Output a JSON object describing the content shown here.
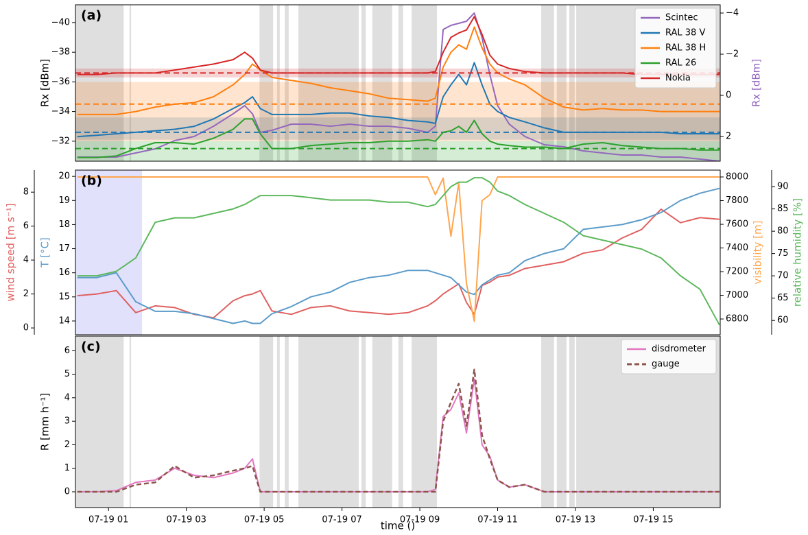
{
  "chart_data": [
    {
      "type": "line",
      "label": "(a)",
      "ylabel": "Rx [dBm]",
      "y2label": "Rx [dBm]",
      "xlim": [
        0.15,
        16.72
      ],
      "ylim": [
        -30.65,
        -41.2
      ],
      "yticks": [
        {
          "value": -40,
          "label": "−40"
        },
        {
          "value": -38,
          "label": "−38"
        },
        {
          "value": -36,
          "label": "−36"
        },
        {
          "value": -34,
          "label": "−34"
        },
        {
          "value": -32,
          "label": "−32"
        }
      ],
      "y2lim": [
        3.2,
        -4.4
      ],
      "y2ticks": [
        {
          "value": -4,
          "label": "−4"
        },
        {
          "value": -2,
          "label": "−2"
        },
        0,
        2
      ],
      "shade_color": "#d9d9d9",
      "shaded": [
        [
          0.15,
          1.39
        ],
        [
          1.54,
          1.58
        ],
        [
          4.88,
          5.23
        ],
        [
          5.33,
          5.4
        ],
        [
          5.53,
          5.63
        ],
        [
          5.88,
          7.43
        ],
        [
          7.5,
          7.61
        ],
        [
          7.78,
          8.29
        ],
        [
          8.45,
          8.57
        ],
        [
          8.79,
          9.44
        ],
        [
          12.12,
          12.45
        ],
        [
          12.52,
          12.77
        ],
        [
          12.84,
          12.98
        ],
        [
          13.02,
          16.72
        ]
      ],
      "legend": "upper right",
      "x": [
        0.2,
        0.7,
        1.2,
        1.7,
        2.2,
        2.7,
        3.2,
        3.7,
        4.2,
        4.5,
        4.7,
        4.9,
        5.2,
        5.7,
        6.2,
        6.7,
        7.2,
        7.7,
        8.2,
        8.7,
        9.2,
        9.4,
        9.6,
        9.8,
        10.0,
        10.2,
        10.4,
        10.6,
        10.8,
        11.0,
        11.3,
        11.7,
        12.2,
        12.7,
        13.2,
        13.7,
        14.2,
        14.7,
        15.2,
        15.7,
        16.2,
        16.7
      ],
      "series": [
        {
          "name": "Scintec",
          "color": "#9467bd",
          "axis": "y2",
          "values": [
            3.0,
            3.0,
            3.0,
            2.8,
            2.6,
            2.2,
            2.0,
            1.5,
            0.9,
            0.5,
            0.9,
            1.8,
            1.7,
            1.4,
            1.4,
            1.5,
            1.4,
            1.5,
            1.5,
            1.6,
            1.8,
            1.5,
            -3.2,
            -3.4,
            -3.5,
            -3.6,
            -4.0,
            -2.8,
            -1.0,
            0.5,
            1.4,
            2.0,
            2.4,
            2.5,
            2.7,
            2.8,
            2.9,
            2.9,
            3.0,
            3.0,
            3.1,
            3.2
          ]
        },
        {
          "name": "RAL 38 V",
          "color": "#1f77b4",
          "axis": "y",
          "baseline": -32.6,
          "band": [
            -33.6,
            -32.1
          ],
          "values": [
            -32.3,
            -32.4,
            -32.5,
            -32.6,
            -32.7,
            -32.8,
            -33.0,
            -33.5,
            -34.2,
            -34.6,
            -35.0,
            -34.2,
            -33.8,
            -33.8,
            -33.8,
            -33.9,
            -33.9,
            -33.7,
            -33.6,
            -33.4,
            -33.3,
            -33.2,
            -35.0,
            -35.8,
            -36.5,
            -35.8,
            -37.3,
            -35.8,
            -34.5,
            -34.0,
            -33.6,
            -33.3,
            -32.9,
            -32.6,
            -32.6,
            -32.6,
            -32.6,
            -32.6,
            -32.6,
            -32.5,
            -32.5,
            -32.5
          ]
        },
        {
          "name": "RAL 38 H",
          "color": "#ff7f0e",
          "axis": "y",
          "baseline": -34.5,
          "band": [
            -36.0,
            -32.0
          ],
          "values": [
            -33.8,
            -33.8,
            -33.8,
            -34.0,
            -34.3,
            -34.5,
            -34.6,
            -35.0,
            -35.8,
            -36.5,
            -37.2,
            -36.8,
            -36.3,
            -36.1,
            -35.9,
            -35.6,
            -35.4,
            -35.2,
            -34.9,
            -34.8,
            -34.7,
            -34.9,
            -37.0,
            -38.0,
            -38.5,
            -38.2,
            -39.7,
            -38.3,
            -37.2,
            -36.6,
            -36.2,
            -35.8,
            -34.9,
            -34.3,
            -34.1,
            -34.2,
            -34.1,
            -34.1,
            -34.0,
            -34.0,
            -34.0,
            -34.0
          ]
        },
        {
          "name": "RAL 26",
          "color": "#2ca02c",
          "axis": "y",
          "baseline": -31.5,
          "band": [
            -32.0,
            -30.6
          ],
          "values": [
            -30.9,
            -30.9,
            -31.0,
            -31.5,
            -31.9,
            -31.9,
            -31.8,
            -32.2,
            -32.8,
            -33.5,
            -33.5,
            -32.5,
            -31.5,
            -31.5,
            -31.7,
            -31.8,
            -31.9,
            -31.9,
            -32.0,
            -32.0,
            -32.1,
            -32.0,
            -32.6,
            -32.7,
            -33.0,
            -32.6,
            -33.4,
            -32.5,
            -32.0,
            -31.8,
            -31.7,
            -31.6,
            -31.6,
            -31.5,
            -31.8,
            -31.9,
            -31.7,
            -31.6,
            -31.5,
            -31.5,
            -31.4,
            -31.4
          ]
        },
        {
          "name": "Nokia",
          "color": "#d62728",
          "axis": "y",
          "baseline": -36.6,
          "band": [
            -36.9,
            -36.3
          ],
          "values": [
            -36.5,
            -36.5,
            -36.6,
            -36.6,
            -36.6,
            -36.8,
            -37.0,
            -37.2,
            -37.5,
            -38.0,
            -37.6,
            -36.8,
            -36.6,
            -36.6,
            -36.6,
            -36.6,
            -36.6,
            -36.6,
            -36.6,
            -36.6,
            -36.6,
            -36.7,
            -38.0,
            -39.0,
            -39.3,
            -39.5,
            -40.4,
            -39.2,
            -37.8,
            -37.2,
            -36.9,
            -36.7,
            -36.6,
            -36.6,
            -36.6,
            -36.6,
            -36.6,
            -36.5,
            -36.5,
            -36.5,
            -36.5,
            -36.5
          ]
        }
      ]
    },
    {
      "type": "line",
      "label": "(b)",
      "ylabel": "T [°C]",
      "y2label": "visibility [m]",
      "y3label": "wind speed [m s⁻¹]",
      "y4label": "relative humidity [%]",
      "xlim": [
        0.15,
        16.72
      ],
      "ylim": [
        13.43,
        20.26
      ],
      "yticks": [
        14,
        15,
        16,
        17,
        18,
        19,
        20
      ],
      "y2lim": [
        6667,
        8058
      ],
      "y2ticks": [
        6800,
        7000,
        7200,
        7400,
        7600,
        7800,
        8000
      ],
      "y3lim": [
        -0.4,
        9.3
      ],
      "y3ticks": [
        0,
        2,
        4,
        6,
        8
      ],
      "y4lim": [
        56.8,
        93.7
      ],
      "y4ticks": [
        60,
        65,
        70,
        75,
        80,
        85,
        90
      ],
      "shade_color": "#dcdcfb",
      "shaded": [
        [
          0.15,
          1.86
        ]
      ],
      "x": [
        0.2,
        0.7,
        1.2,
        1.7,
        2.2,
        2.7,
        3.2,
        3.7,
        4.2,
        4.5,
        4.7,
        4.9,
        5.2,
        5.7,
        6.2,
        6.7,
        7.2,
        7.7,
        8.2,
        8.7,
        9.2,
        9.4,
        9.6,
        9.8,
        10.0,
        10.2,
        10.4,
        10.6,
        10.8,
        11.0,
        11.3,
        11.7,
        12.2,
        12.7,
        13.2,
        13.7,
        14.2,
        14.7,
        15.2,
        15.7,
        16.2,
        16.7
      ],
      "series": [
        {
          "color": "#e06060",
          "axis": "y3",
          "values": [
            1.9,
            2.0,
            2.2,
            0.9,
            1.3,
            1.2,
            0.8,
            0.6,
            1.6,
            1.9,
            2.0,
            2.2,
            1.0,
            0.8,
            1.2,
            1.3,
            1.0,
            0.9,
            0.8,
            0.9,
            1.3,
            1.6,
            2.0,
            2.3,
            2.6,
            1.5,
            0.8,
            2.5,
            2.7,
            3.0,
            3.1,
            3.5,
            3.7,
            3.9,
            4.4,
            4.6,
            5.3,
            5.8,
            7.0,
            6.2,
            6.5,
            6.4
          ]
        },
        {
          "color": "#5b9bc9",
          "axis": "y",
          "values": [
            15.8,
            15.8,
            16.0,
            14.8,
            14.4,
            14.4,
            14.3,
            14.1,
            13.9,
            14.0,
            13.9,
            13.9,
            14.3,
            14.6,
            15.0,
            15.2,
            15.6,
            15.8,
            15.9,
            16.1,
            16.1,
            16.0,
            15.9,
            15.8,
            15.5,
            15.2,
            15.1,
            15.5,
            15.7,
            15.9,
            16.0,
            16.5,
            16.8,
            17.0,
            17.8,
            17.9,
            18.0,
            18.2,
            18.5,
            19.0,
            19.3,
            19.5
          ]
        },
        {
          "color": "#ffa64d",
          "axis": "y2",
          "values": [
            8000,
            8000,
            8000,
            8000,
            8000,
            8000,
            8000,
            8000,
            8000,
            8000,
            8000,
            8000,
            8000,
            8000,
            8000,
            8000,
            8000,
            8000,
            8000,
            8000,
            8000,
            7850,
            7990,
            7500,
            7950,
            7100,
            6780,
            7800,
            7850,
            8000,
            8000,
            8000,
            8000,
            8000,
            8000,
            8000,
            8000,
            8000,
            8000,
            8000,
            8000,
            8000
          ]
        },
        {
          "color": "#5cb85c",
          "axis": "y4",
          "values": [
            70,
            70,
            71,
            74,
            82,
            83,
            83,
            84,
            85,
            86,
            87,
            88,
            88,
            88,
            87.5,
            87,
            87,
            87,
            86.5,
            86.5,
            85.5,
            86,
            88,
            90,
            91,
            91,
            92,
            92,
            91,
            89,
            88,
            86,
            84,
            82,
            79,
            78,
            77,
            76,
            74,
            70,
            67,
            59
          ]
        }
      ]
    },
    {
      "type": "line",
      "label": "(c)",
      "ylabel": "R [mm h⁻¹]",
      "xlabel": "time ()",
      "xlim": [
        0.15,
        16.72
      ],
      "ylim": [
        -0.67,
        6.62
      ],
      "yticks": [
        0,
        1,
        2,
        3,
        4,
        5,
        6
      ],
      "xticks": [
        {
          "value": 1,
          "label": "07-19 01"
        },
        {
          "value": 3,
          "label": "07-19 03"
        },
        {
          "value": 5,
          "label": "07-19 05"
        },
        {
          "value": 7,
          "label": "07-19 07"
        },
        {
          "value": 9,
          "label": "07-19 09"
        },
        {
          "value": 11,
          "label": "07-19 11"
        },
        {
          "value": 13,
          "label": "07-19 13"
        },
        {
          "value": 15,
          "label": "07-19 15"
        }
      ],
      "shade_color": "#d9d9d9",
      "shaded": [
        [
          0.15,
          1.39
        ],
        [
          1.54,
          1.58
        ],
        [
          4.88,
          5.23
        ],
        [
          5.33,
          5.4
        ],
        [
          5.53,
          5.63
        ],
        [
          5.88,
          7.43
        ],
        [
          7.5,
          7.61
        ],
        [
          7.78,
          8.29
        ],
        [
          8.45,
          8.57
        ],
        [
          8.79,
          9.44
        ],
        [
          12.12,
          12.45
        ],
        [
          12.52,
          12.77
        ],
        [
          12.84,
          12.98
        ],
        [
          13.02,
          16.72
        ]
      ],
      "legend": "upper right",
      "x": [
        0.2,
        0.7,
        1.2,
        1.7,
        2.2,
        2.7,
        3.2,
        3.7,
        4.2,
        4.5,
        4.7,
        4.9,
        5.2,
        5.7,
        6.2,
        6.7,
        7.2,
        7.7,
        8.2,
        8.7,
        9.2,
        9.4,
        9.6,
        9.8,
        10.0,
        10.2,
        10.4,
        10.6,
        10.8,
        11.0,
        11.3,
        11.7,
        12.2,
        12.7,
        13.2,
        13.7,
        14.2,
        14.7,
        15.2,
        15.7,
        16.2,
        16.7
      ],
      "series": [
        {
          "name": "disdrometer",
          "color": "#e377c2",
          "axis": "y",
          "values": [
            0,
            0,
            0.05,
            0.4,
            0.5,
            1.0,
            0.7,
            0.6,
            0.8,
            1.0,
            1.4,
            0,
            0,
            0,
            0,
            0,
            0,
            0,
            0,
            0,
            0,
            0.1,
            3.2,
            3.5,
            4.2,
            2.5,
            4.8,
            2.0,
            1.5,
            0.5,
            0.2,
            0.3,
            0,
            0,
            0,
            0,
            0,
            0,
            0,
            0,
            0,
            0
          ]
        },
        {
          "name": "gauge",
          "color": "#8c564b",
          "axis": "y",
          "dash": true,
          "values": [
            0,
            0,
            0,
            0.3,
            0.4,
            1.1,
            0.6,
            0.7,
            0.9,
            1.0,
            1.1,
            0,
            0,
            0,
            0,
            0,
            0,
            0,
            0,
            0,
            0,
            0,
            3.0,
            3.8,
            4.6,
            2.8,
            5.2,
            2.4,
            1.4,
            0.5,
            0.2,
            0.3,
            0,
            0,
            0,
            0,
            0,
            0,
            0,
            0,
            0,
            0
          ]
        }
      ]
    }
  ]
}
